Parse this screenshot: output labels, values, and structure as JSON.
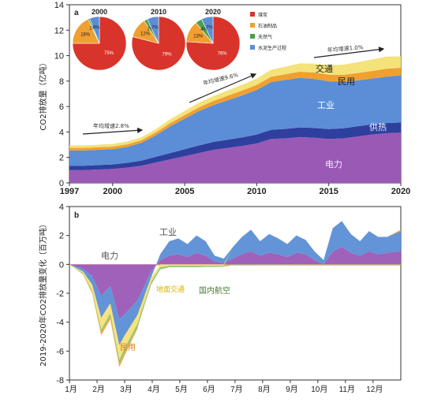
{
  "chart_data": [
    {
      "type": "area",
      "panel": "a",
      "ylabel": "CO2排放量（亿吨）",
      "xlim": [
        1997,
        2020
      ],
      "ylim": [
        0,
        14
      ],
      "x_ticks": [
        1997,
        2000,
        2005,
        2010,
        2015,
        2020
      ],
      "y_ticks": [
        0,
        2,
        4,
        6,
        8,
        10,
        12,
        14
      ],
      "x": [
        1997,
        1998,
        1999,
        2000,
        2001,
        2002,
        2003,
        2004,
        2005,
        2006,
        2007,
        2008,
        2009,
        2010,
        2011,
        2012,
        2013,
        2014,
        2015,
        2016,
        2017,
        2018,
        2019,
        2020
      ],
      "series": [
        {
          "name": "电力",
          "color": "#9b59b6",
          "values": [
            1.0,
            1.0,
            1.05,
            1.1,
            1.2,
            1.35,
            1.6,
            1.85,
            2.1,
            2.35,
            2.6,
            2.75,
            2.9,
            3.1,
            3.45,
            3.5,
            3.6,
            3.55,
            3.45,
            3.5,
            3.65,
            3.8,
            3.9,
            3.95
          ]
        },
        {
          "name": "供热",
          "color": "#2f3f9e",
          "values": [
            0.35,
            0.35,
            0.35,
            0.35,
            0.38,
            0.4,
            0.45,
            0.5,
            0.55,
            0.6,
            0.62,
            0.65,
            0.68,
            0.7,
            0.72,
            0.74,
            0.76,
            0.77,
            0.78,
            0.79,
            0.8,
            0.8,
            0.8,
            0.8
          ]
        },
        {
          "name": "工业",
          "color": "#5b8ed6",
          "values": [
            1.2,
            1.2,
            1.2,
            1.2,
            1.25,
            1.4,
            1.7,
            2.1,
            2.4,
            2.7,
            2.9,
            3.1,
            3.3,
            3.5,
            3.75,
            3.85,
            3.9,
            3.85,
            3.75,
            3.65,
            3.6,
            3.6,
            3.65,
            3.7
          ]
        },
        {
          "name": "民用",
          "color": "#f0a030",
          "values": [
            0.2,
            0.2,
            0.2,
            0.2,
            0.2,
            0.2,
            0.22,
            0.25,
            0.28,
            0.3,
            0.32,
            0.35,
            0.38,
            0.4,
            0.42,
            0.45,
            0.48,
            0.5,
            0.52,
            0.55,
            0.58,
            0.6,
            0.62,
            0.6
          ]
        },
        {
          "name": "交通",
          "color": "#f4e27a",
          "values": [
            0.2,
            0.2,
            0.2,
            0.22,
            0.22,
            0.24,
            0.26,
            0.3,
            0.33,
            0.36,
            0.39,
            0.42,
            0.45,
            0.5,
            0.55,
            0.6,
            0.65,
            0.7,
            0.75,
            0.8,
            0.85,
            0.9,
            0.95,
            0.9
          ]
        }
      ],
      "annotations": [
        {
          "text": "年均增速2.8%"
        },
        {
          "text": "年均增速9.6%"
        },
        {
          "text": "年均增速1.0%"
        }
      ],
      "pies": [
        {
          "year": "2000",
          "slices": [
            {
              "label": "煤炭",
              "value": 75,
              "color": "#d9342b"
            },
            {
              "label": "石油制品",
              "value": 18,
              "color": "#f0a030"
            },
            {
              "label": "天然气",
              "value": 1,
              "color": "#4aa04a"
            },
            {
              "label": "水泥生产过程",
              "value": 6,
              "color": "#5b8ed6"
            }
          ],
          "labels": [
            "75%",
            "18%",
            "1%",
            "6%"
          ]
        },
        {
          "year": "2010",
          "slices": [
            {
              "label": "煤炭",
              "value": 79,
              "color": "#d9342b"
            },
            {
              "label": "石油制品",
              "value": 12,
              "color": "#f0a030"
            },
            {
              "label": "天然气",
              "value": 2,
              "color": "#4aa04a"
            },
            {
              "label": "水泥生产过程",
              "value": 7,
              "color": "#5b8ed6"
            }
          ],
          "labels": [
            "79%",
            "12%",
            "2%",
            "7%"
          ]
        },
        {
          "year": "2020",
          "slices": [
            {
              "label": "煤炭",
              "value": 76,
              "color": "#d9342b"
            },
            {
              "label": "石油制品",
              "value": 13,
              "color": "#f0a030"
            },
            {
              "label": "天然气",
              "value": 4,
              "color": "#4aa04a"
            },
            {
              "label": "水泥生产过程",
              "value": 7,
              "color": "#5b8ed6"
            }
          ],
          "labels": [
            "76%",
            "13%",
            "4%",
            "7%"
          ]
        }
      ],
      "legend": [
        "煤炭",
        "石油制品",
        "天然气",
        "水泥生产过程"
      ]
    },
    {
      "type": "area",
      "panel": "b",
      "ylabel": "2019-2020年CO2排放量变化（百万吨）",
      "ylim": [
        -8,
        4
      ],
      "y_ticks": [
        -8,
        -6,
        -4,
        -2,
        0,
        2,
        4
      ],
      "x_ticks": [
        "1月",
        "2月",
        "3月",
        "4月",
        "5月",
        "6月",
        "7月",
        "8月",
        "9月",
        "10月",
        "11月",
        "12月"
      ],
      "x_days": [
        0,
        15,
        25,
        35,
        45,
        55,
        60,
        75,
        90,
        100,
        110,
        120,
        130,
        140,
        150,
        160,
        170,
        180,
        190,
        200,
        210,
        220,
        230,
        240,
        250,
        260,
        270,
        280,
        290,
        300,
        310,
        320,
        330,
        340,
        350,
        365
      ],
      "series": [
        {
          "name": "电力",
          "color": "#9b59b6",
          "values": [
            0,
            -0.3,
            -0.8,
            -2.2,
            -1.5,
            -3.8,
            -3.5,
            -2.5,
            -0.5,
            0.3,
            0.6,
            0.7,
            0.5,
            0.8,
            0.6,
            0.2,
            0.1,
            0.4,
            0.7,
            0.9,
            0.6,
            0.8,
            0.7,
            0.5,
            0.8,
            0.7,
            0.3,
            0,
            0.9,
            1.2,
            0.8,
            0.6,
            0.9,
            0.7,
            0.8,
            0.9
          ]
        },
        {
          "name": "工业",
          "color": "#5b8ed6",
          "values": [
            0,
            -0.2,
            -0.6,
            -1.5,
            -1.2,
            -1.8,
            -1.5,
            -1.0,
            -0.4,
            0.4,
            1.0,
            1.1,
            0.9,
            1.2,
            1.0,
            0.4,
            0.3,
            0.8,
            1.2,
            1.5,
            1.0,
            1.3,
            1.1,
            0.9,
            1.2,
            1.0,
            0.6,
            0.3,
            1.6,
            1.8,
            1.3,
            1.0,
            1.4,
            1.2,
            1.1,
            1.4
          ]
        },
        {
          "name": "地面交通",
          "color": "#f4e27a",
          "values": [
            0,
            -0.1,
            -0.4,
            -0.8,
            -0.7,
            -1.0,
            -0.9,
            -0.6,
            -0.3,
            -0.2,
            -0.1,
            -0.1,
            -0.1,
            -0.1,
            -0.1,
            -0.1,
            -0.1,
            0,
            0,
            0,
            0,
            0,
            0,
            0,
            0,
            0,
            0,
            0,
            0,
            0,
            0,
            0,
            0,
            0,
            0,
            0
          ]
        },
        {
          "name": "国内航空",
          "color": "#8fc46c",
          "values": [
            0,
            -0.05,
            -0.1,
            -0.2,
            -0.2,
            -0.3,
            -0.3,
            -0.25,
            -0.2,
            -0.15,
            -0.1,
            -0.1,
            -0.1,
            -0.1,
            -0.08,
            -0.08,
            -0.06,
            -0.05,
            -0.05,
            -0.05,
            -0.04,
            -0.04,
            -0.04,
            -0.04,
            -0.03,
            -0.03,
            -0.03,
            -0.03,
            -0.03,
            -0.03,
            -0.03,
            -0.03,
            -0.03,
            -0.03,
            -0.03,
            -0.03
          ]
        },
        {
          "name": "民用",
          "color": "#f0a030",
          "values": [
            0,
            -0.05,
            -0.1,
            -0.2,
            -0.2,
            -0.2,
            -0.2,
            -0.1,
            0,
            0,
            0,
            0,
            0,
            0,
            0,
            0,
            0,
            0,
            0,
            0,
            0,
            0,
            0,
            0,
            0,
            0,
            0,
            0,
            0,
            0,
            0,
            0,
            0,
            0,
            0,
            0.1
          ]
        }
      ]
    }
  ]
}
